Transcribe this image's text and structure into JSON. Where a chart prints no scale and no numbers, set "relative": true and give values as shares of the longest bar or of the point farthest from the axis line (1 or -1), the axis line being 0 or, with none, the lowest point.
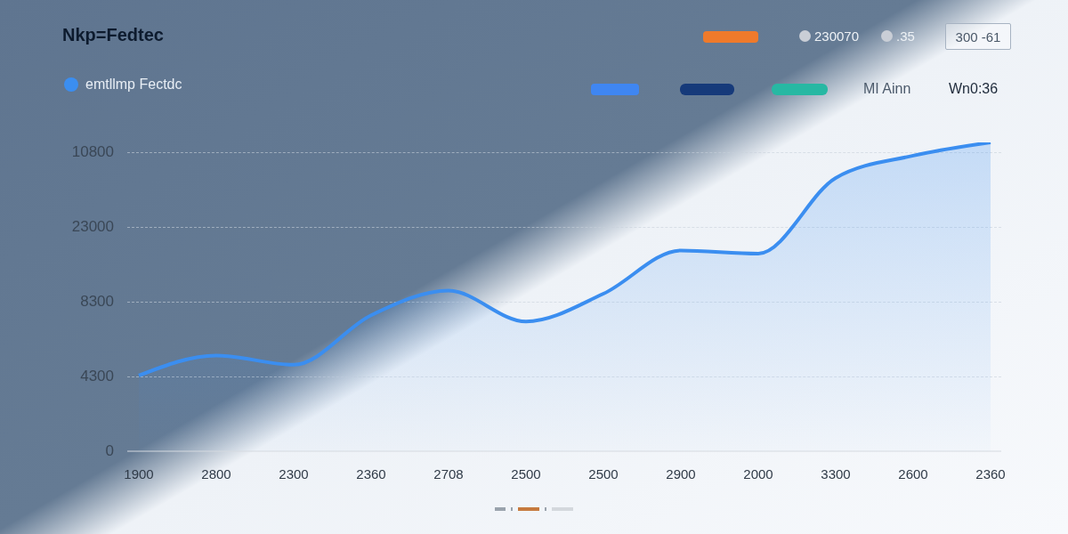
{
  "chart_data": {
    "type": "area",
    "title": "Nkp=Fedtec",
    "relative": true,
    "categories": [
      "1900",
      "2800",
      "2300",
      "2360",
      "2708",
      "2500",
      "2500",
      "2900",
      "2000",
      "3300",
      "2600",
      "2360"
    ],
    "series": [
      {
        "name": "emtllmp Fectdc",
        "color": "#3b8ef0",
        "values": [
          0.245,
          0.31,
          0.28,
          0.44,
          0.52,
          0.42,
          0.51,
          0.65,
          0.64,
          0.885,
          0.957,
          1
        ]
      }
    ],
    "annotations": [
      "230070",
      ".35",
      "300 -61",
      "MI Ainn",
      "Wn0:36",
      "0",
      "4300",
      "8300",
      "23000",
      "10800"
    ],
    "grid": "y",
    "legend": "top left"
  }
}
